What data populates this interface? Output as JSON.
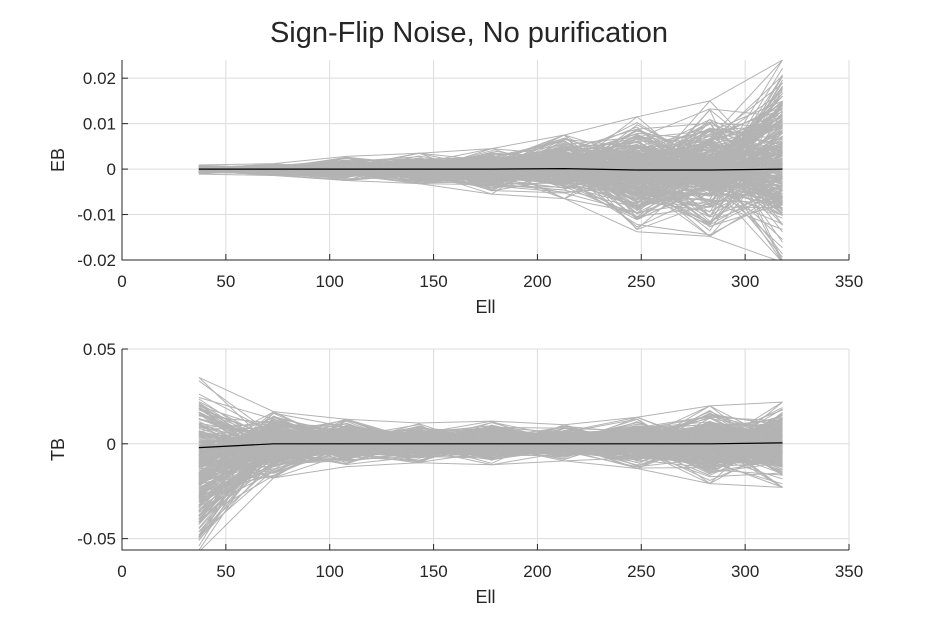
{
  "chart_data": {
    "title": "Sign-Flip Noise, No purification",
    "subplots": [
      {
        "type": "line",
        "xlabel": "Ell",
        "ylabel": "EB",
        "xlim": [
          0,
          350
        ],
        "ylim": [
          -0.02,
          0.024
        ],
        "xticks": [
          0,
          50,
          100,
          150,
          200,
          250,
          300,
          350
        ],
        "yticks": [
          -0.02,
          -0.01,
          0,
          0.01,
          0.02
        ],
        "ytick_labels": [
          "-0.02",
          "-0.01",
          "0",
          "0.01",
          "0.02"
        ],
        "grid": true,
        "x": [
          37,
          73,
          108,
          143,
          178,
          213,
          248,
          283,
          318
        ],
        "mean_series": {
          "color": "#000000",
          "values": [
            0.0,
            0.0,
            0.0,
            0.0,
            0.0,
            0.0001,
            -0.0002,
            -0.0002,
            0.0
          ]
        },
        "realizations": {
          "color": "#b3b3b3",
          "count": 300,
          "envelope_upper": [
            0.0009,
            0.0012,
            0.0028,
            0.0035,
            0.0045,
            0.0075,
            0.0115,
            0.015,
            0.024
          ],
          "envelope_lower": [
            -0.0011,
            -0.0014,
            -0.0025,
            -0.0032,
            -0.0055,
            -0.0065,
            -0.0138,
            -0.0148,
            -0.0205
          ]
        }
      },
      {
        "type": "line",
        "xlabel": "Ell",
        "ylabel": "TB",
        "xlim": [
          0,
          350
        ],
        "ylim": [
          -0.056,
          0.05
        ],
        "xticks": [
          0,
          50,
          100,
          150,
          200,
          250,
          300,
          350
        ],
        "yticks": [
          -0.05,
          0,
          0.05
        ],
        "ytick_labels": [
          "-0.05",
          "0",
          "0.05"
        ],
        "grid": true,
        "x": [
          37,
          73,
          108,
          143,
          178,
          213,
          248,
          283,
          318
        ],
        "mean_series": {
          "color": "#000000",
          "values": [
            -0.002,
            0.0,
            0.0,
            0.0,
            0.0,
            0.0,
            0.0,
            0.0,
            0.0005
          ]
        },
        "realizations": {
          "color": "#b3b3b3",
          "count": 300,
          "envelope_upper": [
            0.035,
            0.017,
            0.013,
            0.011,
            0.012,
            0.01,
            0.014,
            0.02,
            0.022
          ],
          "envelope_lower": [
            -0.057,
            -0.018,
            -0.012,
            -0.01,
            -0.011,
            -0.009,
            -0.013,
            -0.021,
            -0.023
          ]
        }
      }
    ]
  }
}
